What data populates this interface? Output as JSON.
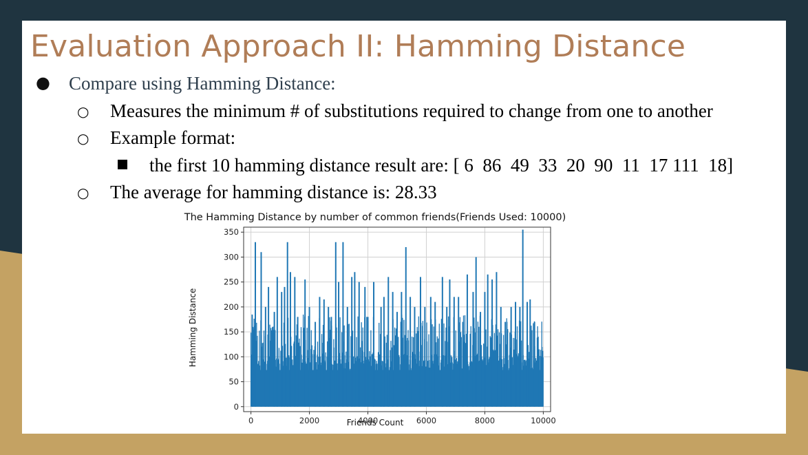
{
  "slide": {
    "title": "Evaluation Approach II: Hamming Distance",
    "bullet1": "Compare using Hamming Distance:",
    "sub1": "Measures the minimum # of substitutions required to change from one to another",
    "sub2": "Example format:",
    "subsub1": "the first 10 hamming distance result are: [ 6  86  49  33  20  90  11  17 111  18]",
    "sub3": "The average for hamming distance is: 28.33"
  },
  "colors": {
    "title": "#b07d57",
    "accent_gold": "#c4a263",
    "dark_bg": "#1f3440",
    "series": "#1f77b4"
  },
  "chart_data": {
    "type": "line",
    "title": "The Hamming Distance by number of common friends(Friends Used: 10000)",
    "xlabel": "Friends Count",
    "ylabel": "Hamming Distance",
    "xlim": [
      -250,
      10250
    ],
    "ylim": [
      -10,
      360
    ],
    "xticks": [
      0,
      2000,
      4000,
      6000,
      8000,
      10000
    ],
    "yticks": [
      0,
      50,
      100,
      150,
      200,
      250,
      300,
      350
    ],
    "grid": true,
    "n_points": 10000,
    "baseline_max": 105,
    "peaks": [
      [
        60,
        160
      ],
      [
        150,
        330
      ],
      [
        350,
        310
      ],
      [
        500,
        200
      ],
      [
        600,
        240
      ],
      [
        800,
        190
      ],
      [
        900,
        260
      ],
      [
        1050,
        230
      ],
      [
        1150,
        240
      ],
      [
        1250,
        330
      ],
      [
        1350,
        270
      ],
      [
        1500,
        260
      ],
      [
        1600,
        180
      ],
      [
        1850,
        255
      ],
      [
        2000,
        200
      ],
      [
        2200,
        170
      ],
      [
        2350,
        220
      ],
      [
        2500,
        215
      ],
      [
        2650,
        200
      ],
      [
        2750,
        180
      ],
      [
        2900,
        330
      ],
      [
        3000,
        250
      ],
      [
        3150,
        330
      ],
      [
        3300,
        200
      ],
      [
        3450,
        260
      ],
      [
        3550,
        270
      ],
      [
        3700,
        250
      ],
      [
        3900,
        240
      ],
      [
        4000,
        180
      ],
      [
        4200,
        250
      ],
      [
        4450,
        200
      ],
      [
        4550,
        220
      ],
      [
        4700,
        260
      ],
      [
        4850,
        230
      ],
      [
        5000,
        190
      ],
      [
        5150,
        230
      ],
      [
        5300,
        320
      ],
      [
        5450,
        220
      ],
      [
        5600,
        200
      ],
      [
        5800,
        260
      ],
      [
        5950,
        200
      ],
      [
        6150,
        220
      ],
      [
        6300,
        210
      ],
      [
        6550,
        260
      ],
      [
        6700,
        200
      ],
      [
        6800,
        255
      ],
      [
        6950,
        220
      ],
      [
        7100,
        220
      ],
      [
        7250,
        170
      ],
      [
        7400,
        265
      ],
      [
        7600,
        230
      ],
      [
        7700,
        300
      ],
      [
        7850,
        190
      ],
      [
        8000,
        230
      ],
      [
        8100,
        265
      ],
      [
        8250,
        255
      ],
      [
        8400,
        270
      ],
      [
        8550,
        200
      ],
      [
        8700,
        170
      ],
      [
        8900,
        200
      ],
      [
        9050,
        210
      ],
      [
        9200,
        200
      ],
      [
        9300,
        355
      ],
      [
        9450,
        210
      ],
      [
        9550,
        215
      ],
      [
        9700,
        170
      ],
      [
        9850,
        115
      ]
    ]
  }
}
